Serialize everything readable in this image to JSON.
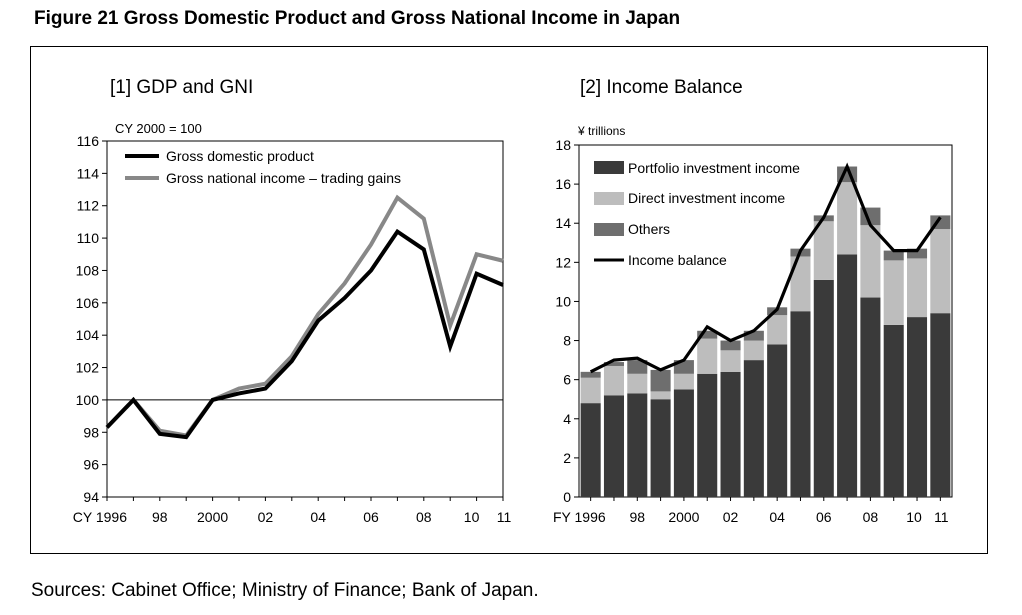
{
  "figure": {
    "title": "Figure 21   Gross Domestic Product and Gross National Income in Japan",
    "sources": "Sources: Cabinet Office; Ministry of Finance; Bank of Japan."
  },
  "chart_data": [
    {
      "type": "line",
      "title": "[1] GDP and GNI",
      "unit_label": "CY 2000 = 100",
      "xlabel": "",
      "ylabel": "",
      "ylim": [
        94,
        116
      ],
      "y_ticks": [
        94,
        96,
        98,
        100,
        102,
        104,
        106,
        108,
        110,
        112,
        114,
        116
      ],
      "x": [
        1996,
        1997,
        1998,
        1999,
        2000,
        2001,
        2002,
        2003,
        2004,
        2005,
        2006,
        2007,
        2008,
        2009,
        2010,
        2011
      ],
      "x_tick_labels": [
        {
          "x": 1996,
          "label": "CY 1996"
        },
        {
          "x": 1998,
          "label": "98"
        },
        {
          "x": 2000,
          "label": "2000"
        },
        {
          "x": 2002,
          "label": "02"
        },
        {
          "x": 2004,
          "label": "04"
        },
        {
          "x": 2006,
          "label": "06"
        },
        {
          "x": 2008,
          "label": "08"
        },
        {
          "x": 2010,
          "label": "10"
        },
        {
          "x": 2011,
          "label": "11"
        }
      ],
      "reference_line": 100,
      "legend_position": "top-left",
      "series": [
        {
          "name": "Gross domestic product",
          "color": "#000000",
          "values": [
            98.3,
            100.0,
            97.9,
            97.7,
            100.0,
            100.4,
            100.7,
            102.4,
            104.9,
            106.3,
            108.0,
            110.4,
            109.3,
            103.3,
            107.8,
            107.1
          ]
        },
        {
          "name": "Gross national income – trading gains",
          "color": "#888888",
          "values": [
            98.3,
            100.0,
            98.1,
            97.8,
            100.0,
            100.7,
            101.0,
            102.7,
            105.3,
            107.2,
            109.6,
            112.5,
            111.2,
            104.6,
            109.0,
            108.6
          ]
        }
      ]
    },
    {
      "type": "bar",
      "stacked": true,
      "title": "[2] Income Balance",
      "unit_label": "¥ trillions",
      "xlabel": "",
      "ylabel": "",
      "ylim": [
        0,
        18
      ],
      "y_ticks": [
        0,
        2,
        4,
        6,
        8,
        10,
        12,
        14,
        16,
        18
      ],
      "categories": [
        "1996",
        "1997",
        "1998",
        "1999",
        "2000",
        "2001",
        "2002",
        "2003",
        "2004",
        "2005",
        "2006",
        "2007",
        "2008",
        "2009",
        "2010",
        "2011"
      ],
      "x_tick_labels": [
        {
          "index": 0,
          "label": "FY 1996"
        },
        {
          "index": 2,
          "label": "98"
        },
        {
          "index": 4,
          "label": "2000"
        },
        {
          "index": 6,
          "label": "02"
        },
        {
          "index": 8,
          "label": "04"
        },
        {
          "index": 10,
          "label": "06"
        },
        {
          "index": 12,
          "label": "08"
        },
        {
          "index": 14,
          "label": "10"
        },
        {
          "index": 15,
          "label": "11"
        }
      ],
      "legend_position": "top-left",
      "series": [
        {
          "name": "Portfolio investment income",
          "color": "#3a3a3a",
          "values": [
            4.8,
            5.2,
            5.3,
            5.0,
            5.5,
            6.3,
            6.4,
            7.0,
            7.8,
            9.5,
            11.1,
            12.4,
            10.2,
            8.8,
            9.2,
            9.4
          ]
        },
        {
          "name": "Direct investment income",
          "color": "#bdbdbd",
          "values": [
            1.3,
            1.5,
            1.0,
            0.4,
            0.8,
            1.8,
            1.1,
            1.0,
            1.5,
            2.8,
            3.0,
            3.7,
            3.7,
            3.3,
            3.0,
            4.3
          ]
        },
        {
          "name": "Others",
          "color": "#6e6e6e",
          "values": [
            0.3,
            0.2,
            0.7,
            1.1,
            0.7,
            0.4,
            0.5,
            0.5,
            0.4,
            0.4,
            0.3,
            0.8,
            0.9,
            0.5,
            0.5,
            0.7
          ]
        }
      ],
      "line_series": {
        "name": "Income balance",
        "color": "#000000",
        "values": [
          6.4,
          7.0,
          7.1,
          6.5,
          7.0,
          8.7,
          8.0,
          8.5,
          9.6,
          12.6,
          14.3,
          16.9,
          13.9,
          12.6,
          12.6,
          14.3
        ]
      }
    }
  ]
}
